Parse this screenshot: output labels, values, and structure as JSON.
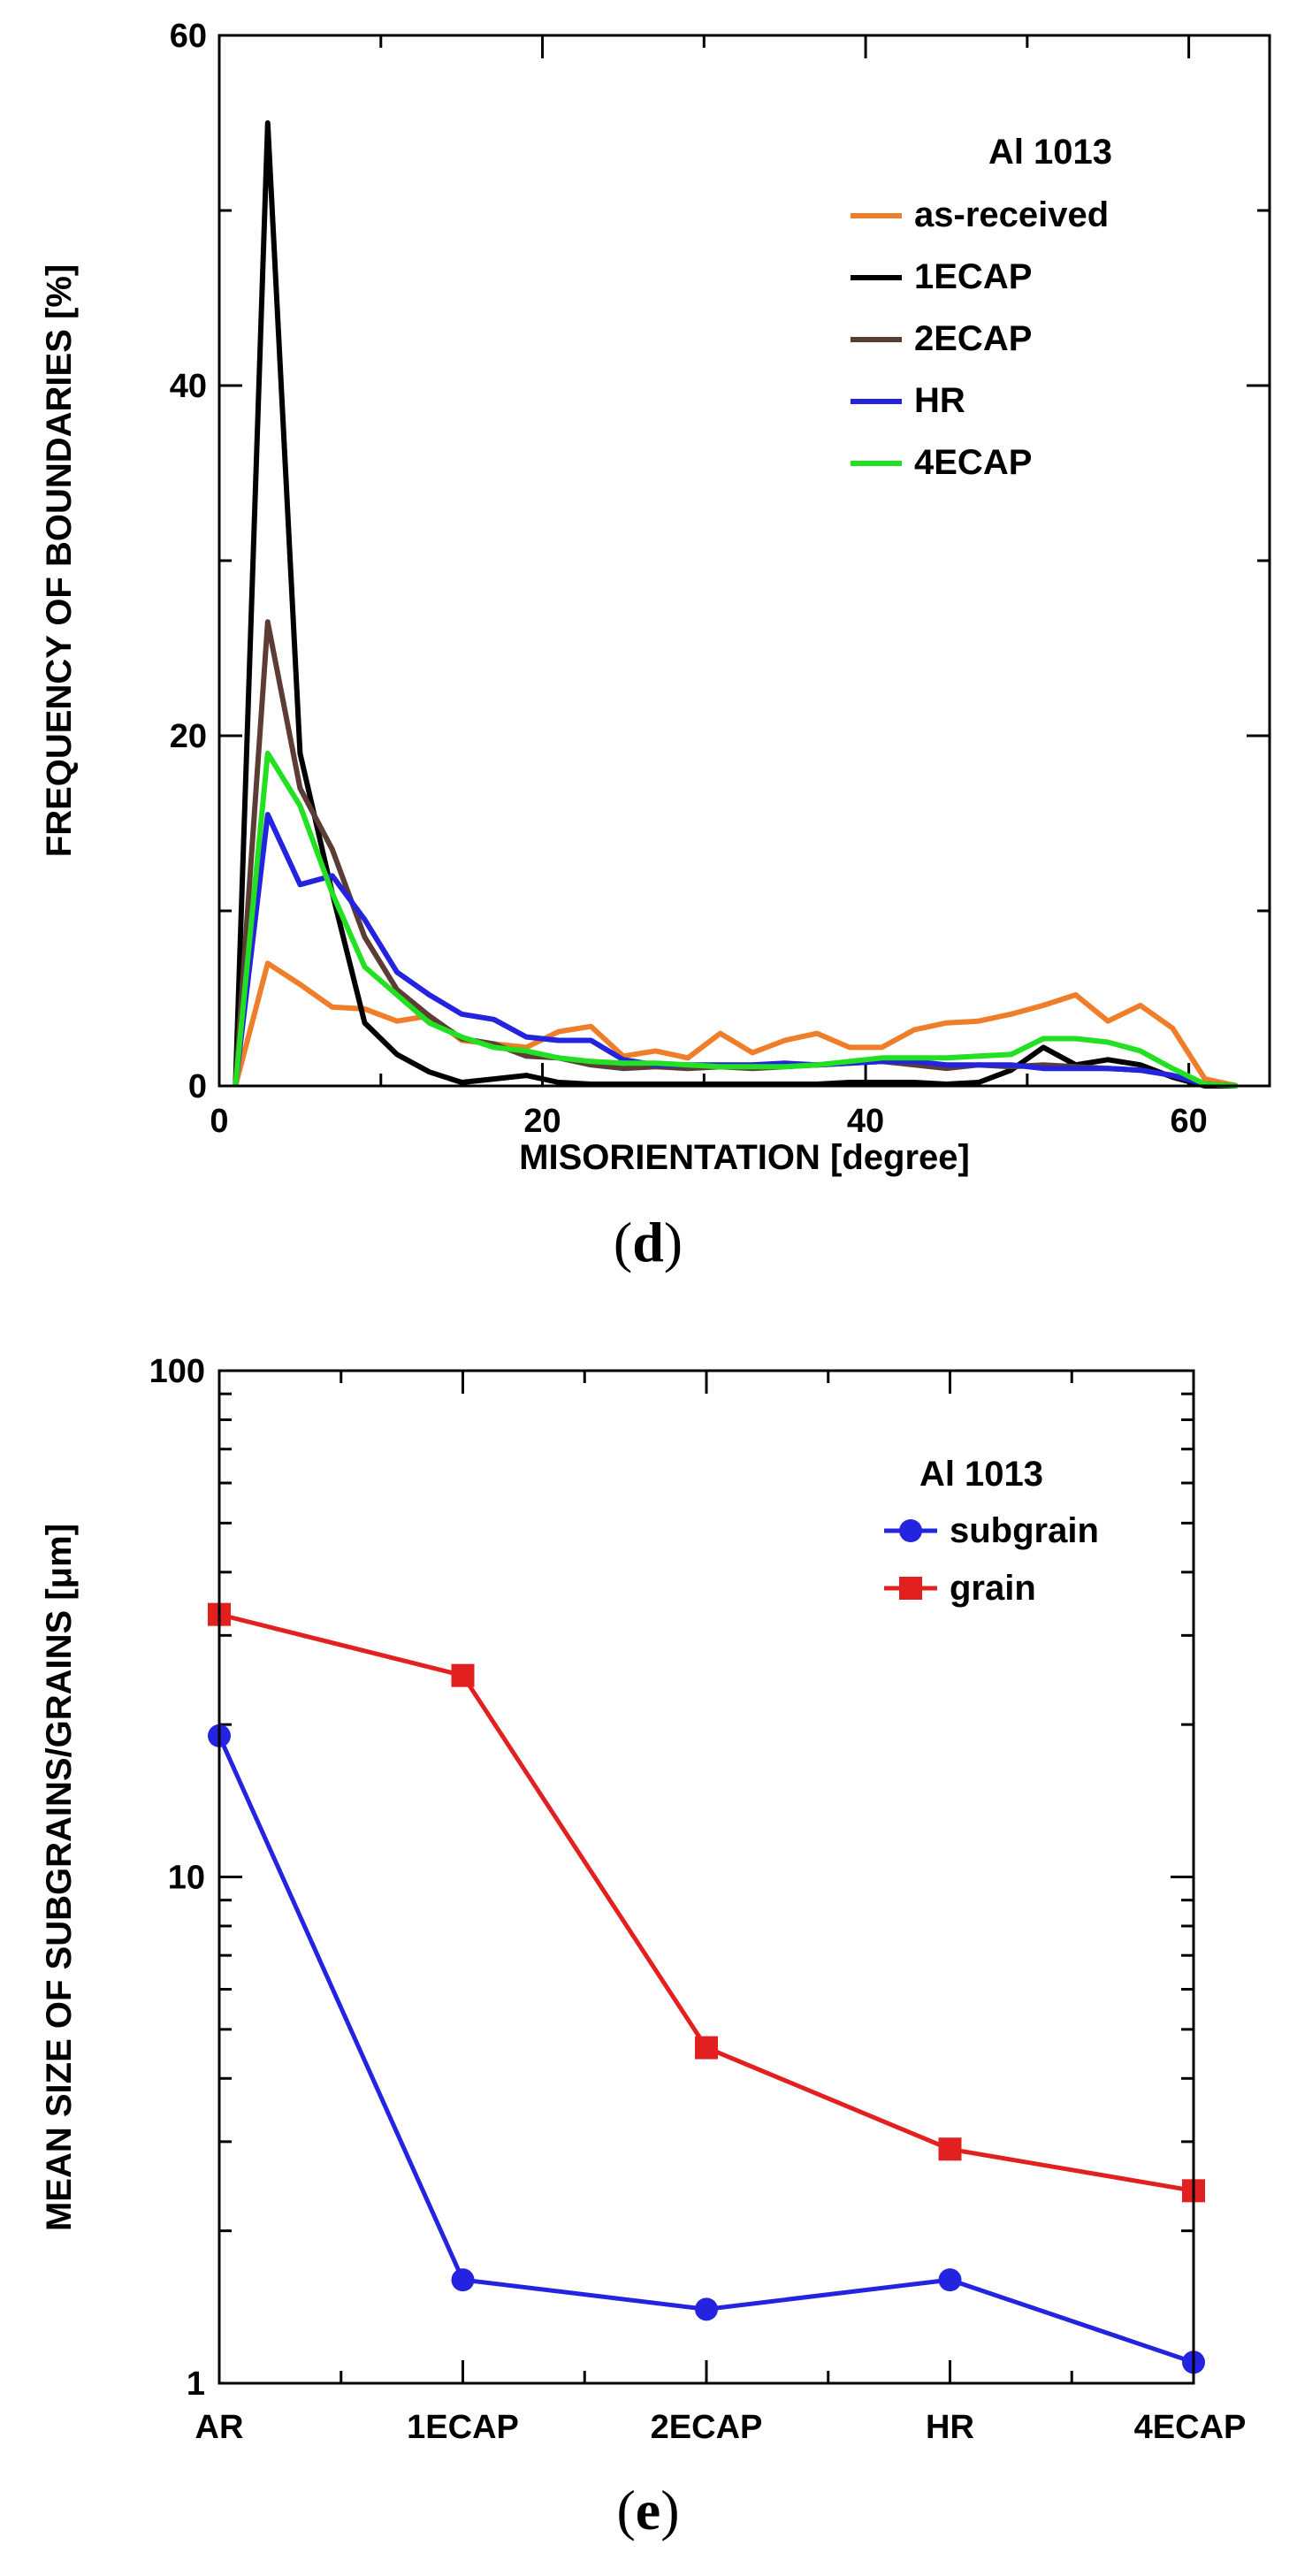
{
  "chart_data": [
    {
      "type": "line",
      "panel_label": {
        "open": "(",
        "letter": "d",
        "close": ")"
      },
      "xlabel": "MISORIENTATION [degree]",
      "ylabel": "FREQUENCY OF BOUNDARIES [%]",
      "xlim": [
        0,
        65
      ],
      "ylim": [
        0,
        60
      ],
      "xticks": [
        0,
        20,
        40,
        60
      ],
      "yticks": [
        0,
        20,
        40,
        60
      ],
      "xtick_labels": [
        "0",
        "20",
        "40",
        "60"
      ],
      "ytick_labels": [
        "0",
        "20",
        "40",
        "60"
      ],
      "legend": {
        "title": "Al 1013",
        "position": "top-right"
      },
      "series": [
        {
          "name": "as-received",
          "color": "#f07d2a",
          "x": [
            1,
            3,
            5,
            7,
            9,
            11,
            13,
            15,
            17,
            19,
            21,
            23,
            25,
            27,
            29,
            31,
            33,
            35,
            37,
            39,
            41,
            43,
            45,
            47,
            49,
            51,
            53,
            55,
            57,
            59,
            61,
            63
          ],
          "y": [
            0,
            7,
            5.8,
            4.5,
            4.4,
            3.7,
            4,
            2.6,
            2.4,
            2.2,
            3.1,
            3.4,
            1.7,
            2,
            1.6,
            3,
            1.9,
            2.6,
            3,
            2.2,
            2.2,
            3.2,
            3.6,
            3.7,
            4.1,
            4.6,
            5.2,
            3.7,
            4.6,
            3.3,
            0.4,
            0
          ]
        },
        {
          "name": "1ECAP",
          "color": "#000000",
          "x": [
            1,
            3,
            5,
            7,
            9,
            11,
            13,
            15,
            17,
            19,
            21,
            23,
            25,
            27,
            29,
            31,
            33,
            35,
            37,
            39,
            41,
            43,
            45,
            47,
            49,
            51,
            53,
            55,
            57,
            59,
            61,
            63
          ],
          "y": [
            0,
            55,
            19,
            11,
            3.6,
            1.8,
            0.8,
            0.2,
            0.4,
            0.6,
            0.2,
            0.1,
            0.1,
            0.1,
            0.1,
            0.1,
            0.1,
            0.1,
            0.1,
            0.2,
            0.2,
            0.2,
            0.1,
            0.2,
            0.9,
            2.2,
            1.2,
            1.5,
            1.2,
            0.5,
            0,
            0
          ]
        },
        {
          "name": "2ECAP",
          "color": "#5c3d35",
          "x": [
            1,
            3,
            5,
            7,
            9,
            11,
            13,
            15,
            17,
            19,
            21,
            23,
            25,
            27,
            29,
            31,
            33,
            35,
            37,
            39,
            41,
            43,
            45,
            47,
            49,
            51,
            53,
            55,
            57,
            59,
            61,
            63
          ],
          "y": [
            0,
            26.5,
            17,
            13.5,
            8.5,
            5.5,
            4,
            2.7,
            2.4,
            1.7,
            1.6,
            1.2,
            1,
            1.1,
            1,
            1.1,
            1,
            1.1,
            1.2,
            1.3,
            1.4,
            1.2,
            1,
            1.2,
            1.1,
            1.2,
            1.1,
            1,
            0.9,
            0.6,
            0.1,
            0
          ]
        },
        {
          "name": "HR",
          "color": "#2323e0",
          "x": [
            1,
            3,
            5,
            7,
            9,
            11,
            13,
            15,
            17,
            19,
            21,
            23,
            25,
            27,
            29,
            31,
            33,
            35,
            37,
            39,
            41,
            43,
            45,
            47,
            49,
            51,
            53,
            55,
            57,
            59,
            61,
            63
          ],
          "y": [
            0,
            15.5,
            11.5,
            12,
            9.5,
            6.5,
            5.2,
            4.1,
            3.8,
            2.8,
            2.6,
            2.6,
            1.5,
            1.2,
            1.2,
            1.2,
            1.2,
            1.3,
            1.2,
            1.3,
            1.4,
            1.4,
            1.2,
            1.2,
            1.2,
            1,
            1,
            1,
            0.9,
            0.6,
            0.1,
            0
          ]
        },
        {
          "name": "4ECAP",
          "color": "#22e022",
          "x": [
            1,
            3,
            5,
            7,
            9,
            11,
            13,
            15,
            17,
            19,
            21,
            23,
            25,
            27,
            29,
            31,
            33,
            35,
            37,
            39,
            41,
            43,
            45,
            47,
            49,
            51,
            53,
            55,
            57,
            59,
            61,
            63
          ],
          "y": [
            0,
            19,
            16,
            11,
            6.8,
            5.2,
            3.6,
            2.8,
            2.2,
            2,
            1.6,
            1.4,
            1.3,
            1.3,
            1.2,
            1.1,
            1.1,
            1.1,
            1.2,
            1.4,
            1.6,
            1.6,
            1.6,
            1.7,
            1.8,
            2.7,
            2.7,
            2.5,
            2,
            1,
            0.1,
            0
          ]
        }
      ]
    },
    {
      "type": "line",
      "panel_label": {
        "open": "(",
        "letter": "e",
        "close": ")"
      },
      "xlabel": "",
      "ylabel": "MEAN SIZE OF SUBGRAINS/GRAINS [μm]",
      "yscale": "log",
      "ylim": [
        1,
        100
      ],
      "yticks": [
        1,
        10,
        100
      ],
      "ytick_labels": [
        "1",
        "10",
        "100"
      ],
      "categories": [
        "AR",
        "1ECAP",
        "2ECAP",
        "HR",
        "4ECAP"
      ],
      "legend": {
        "title": "Al 1013",
        "position": "top-right"
      },
      "series": [
        {
          "name": "subgrain",
          "color": "#2323e0",
          "marker": "circle",
          "values": [
            19,
            1.6,
            1.4,
            1.6,
            1.1
          ]
        },
        {
          "name": "grain",
          "color": "#e32020",
          "marker": "square",
          "values": [
            33,
            25,
            4.6,
            2.9,
            2.4
          ]
        }
      ]
    }
  ]
}
